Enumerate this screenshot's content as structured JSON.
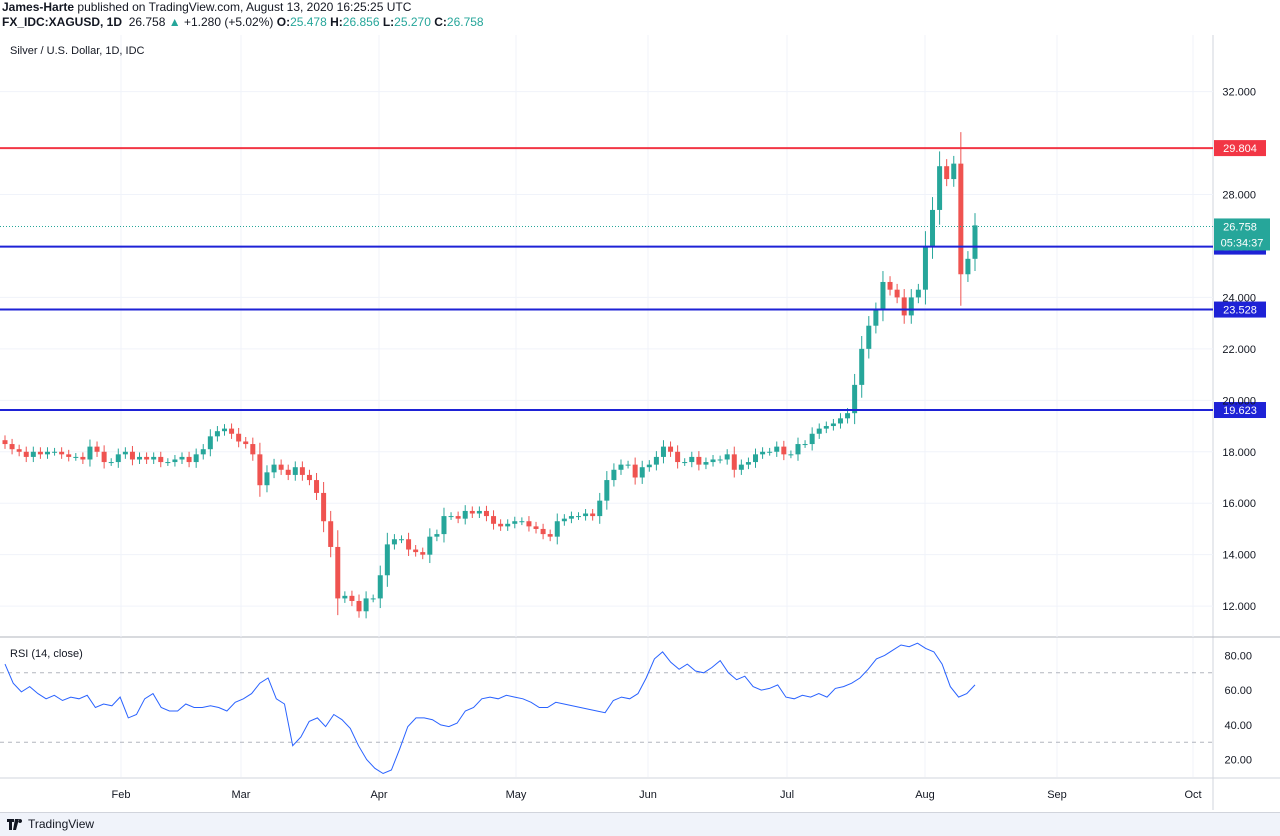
{
  "header": {
    "author": "James-Harte",
    "published_text": "published on TradingView.com, August 13, 2020 16:25:25 UTC",
    "symbol": "FX_IDC:XAGUSD, 1D",
    "last": "26.758",
    "change": "+1.280 (+5.02%)",
    "o_label": "O:",
    "o": "25.478",
    "h_label": "H:",
    "h": "26.856",
    "l_label": "L:",
    "l": "25.270",
    "c_label": "C:",
    "c": "26.758"
  },
  "chart_legend": "Silver / U.S. Dollar, 1D, IDC",
  "rsi_legend": "RSI (14, close)",
  "footer": {
    "brand": "TradingView"
  },
  "colors": {
    "up": "#26a69a",
    "down": "#ef5350",
    "support": "#1e22d6",
    "resistance": "#f23645",
    "rsi": "#2962ff"
  },
  "chart_data": [
    {
      "type": "candlestick",
      "title": "Silver / U.S. Dollar, 1D, IDC",
      "ylim": [
        10.8,
        34.2
      ],
      "y_ticks": [
        "12.000",
        "14.000",
        "16.000",
        "18.000",
        "20.000",
        "22.000",
        "24.000",
        "28.000",
        "32.000"
      ],
      "x_ticks": [
        "Feb",
        "Mar",
        "Apr",
        "May",
        "Jun",
        "Jul",
        "Aug",
        "Sep",
        "Oct"
      ],
      "horizontal_levels": [
        {
          "value": 29.804,
          "label": "29.804",
          "color": "#f23645"
        },
        {
          "value": 25.975,
          "label": "25.975",
          "color": "#1e22d6"
        },
        {
          "value": 23.528,
          "label": "23.528",
          "color": "#1e22d6"
        },
        {
          "value": 19.623,
          "label": "19.623",
          "color": "#1e22d6"
        }
      ],
      "last_price": {
        "value": 26.758,
        "label": "26.758",
        "countdown": "05:34:37"
      },
      "close_series": [
        18.3,
        18.1,
        18.0,
        17.8,
        18.0,
        17.9,
        18.0,
        18.0,
        17.9,
        17.8,
        17.8,
        17.7,
        18.2,
        18.0,
        17.6,
        17.6,
        17.9,
        18.0,
        17.7,
        17.8,
        17.7,
        17.8,
        17.6,
        17.6,
        17.7,
        17.8,
        17.6,
        17.9,
        18.1,
        18.6,
        18.8,
        18.9,
        18.7,
        18.4,
        18.3,
        17.9,
        16.7,
        17.2,
        17.5,
        17.3,
        17.1,
        17.4,
        17.1,
        16.9,
        16.4,
        15.3,
        14.3,
        12.3,
        12.4,
        12.2,
        11.8,
        12.3,
        12.3,
        13.2,
        14.4,
        14.6,
        14.6,
        14.2,
        14.1,
        14.0,
        14.7,
        14.8,
        15.5,
        15.5,
        15.4,
        15.7,
        15.6,
        15.7,
        15.5,
        15.2,
        15.1,
        15.2,
        15.3,
        15.3,
        15.1,
        15.0,
        14.8,
        14.7,
        15.3,
        15.4,
        15.5,
        15.5,
        15.6,
        15.5,
        16.1,
        16.9,
        17.3,
        17.5,
        17.5,
        17.0,
        17.4,
        17.5,
        17.8,
        18.2,
        18.0,
        17.6,
        17.6,
        17.8,
        17.5,
        17.6,
        17.7,
        17.7,
        17.9,
        17.3,
        17.5,
        17.6,
        17.9,
        18.0,
        18.0,
        18.2,
        17.9,
        17.9,
        18.3,
        18.3,
        18.7,
        18.9,
        19.0,
        19.1,
        19.3,
        19.5,
        20.6,
        22.0,
        22.9,
        23.5,
        24.6,
        24.3,
        24.0,
        23.3,
        24.0,
        24.3,
        26.0,
        27.4,
        29.1,
        28.6,
        29.2,
        24.9,
        25.5,
        26.8
      ],
      "rsi": {
        "ylim": [
          10,
          90
        ],
        "y_ticks": [
          "20.00",
          "40.00",
          "60.00",
          "80.00"
        ],
        "levels": [
          70,
          30
        ],
        "values": [
          75,
          64,
          59,
          62,
          58,
          55,
          57,
          54,
          56,
          55,
          57,
          50,
          52,
          51,
          56,
          44,
          46,
          55,
          58,
          50,
          48,
          48,
          52,
          50,
          50,
          51,
          50,
          48,
          53,
          55,
          58,
          64,
          67,
          55,
          52,
          28,
          33,
          42,
          44,
          39,
          46,
          43,
          38,
          28,
          20,
          15,
          12,
          14,
          26,
          39,
          44,
          44,
          43,
          40,
          39,
          41,
          48,
          50,
          55,
          56,
          55,
          57,
          56,
          55,
          53,
          50,
          50,
          53,
          52,
          51,
          50,
          49,
          48,
          47,
          54,
          56,
          55,
          58,
          67,
          78,
          82,
          76,
          72,
          75,
          71,
          70,
          73,
          77,
          70,
          66,
          68,
          62,
          60,
          61,
          63,
          56,
          55,
          57,
          56,
          58,
          56,
          61,
          62,
          64,
          67,
          72,
          78,
          80,
          83,
          86,
          85,
          87,
          84,
          82,
          75,
          62,
          56,
          58,
          63
        ]
      }
    }
  ]
}
